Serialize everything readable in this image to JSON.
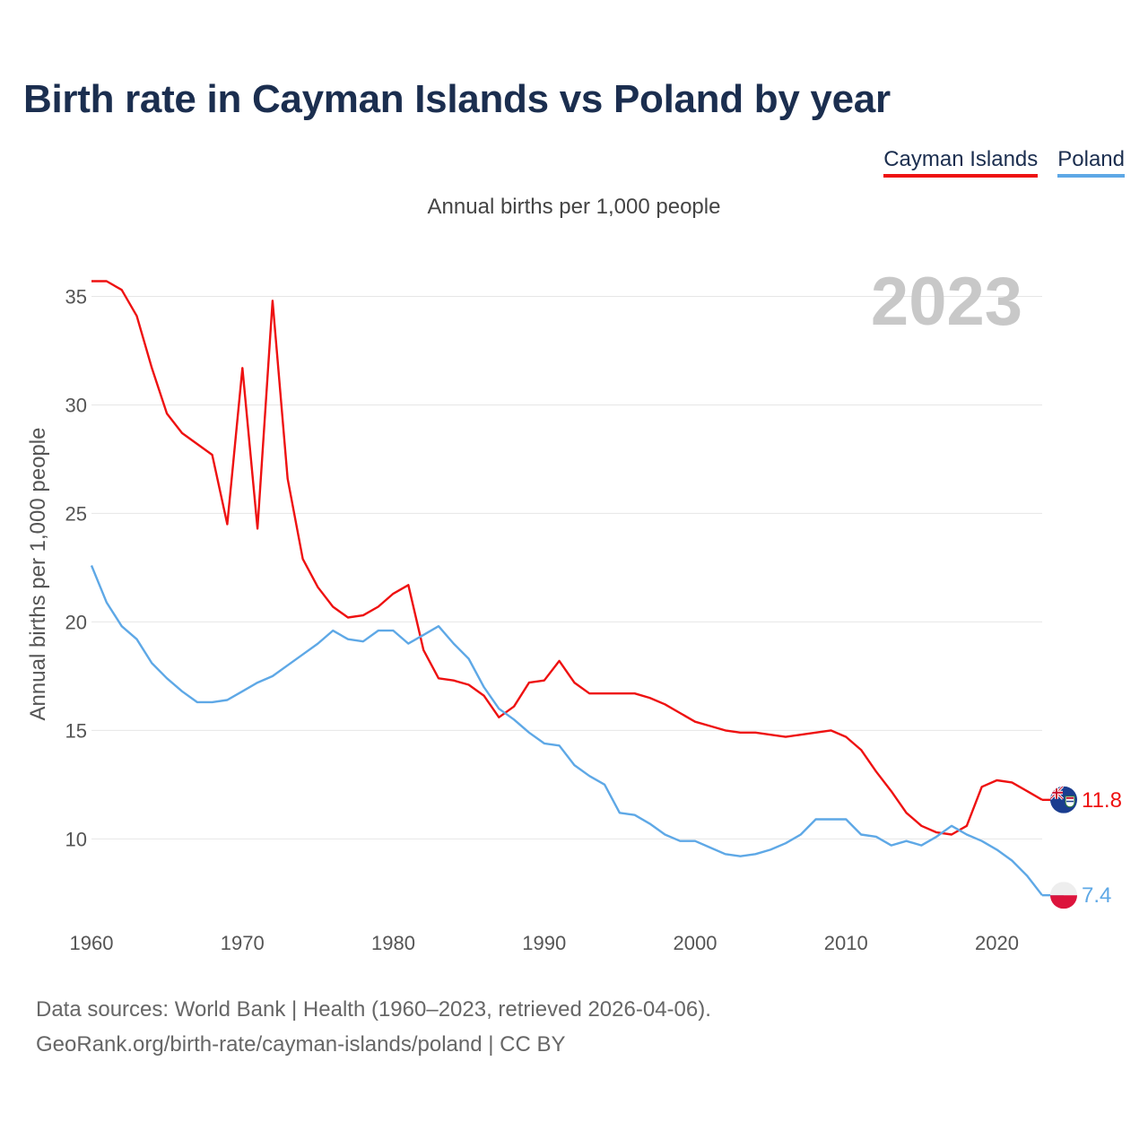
{
  "title": "Birth rate in Cayman Islands vs Poland by year",
  "subtitle": "Annual births per 1,000 people",
  "legend": [
    {
      "name": "Cayman Islands",
      "color": "#ee1111"
    },
    {
      "name": "Poland",
      "color": "#5ea8e6"
    }
  ],
  "current_year": "2023",
  "chart_data": {
    "type": "line",
    "title": "Birth rate in Cayman Islands vs Poland by year",
    "subtitle": "Annual births per 1,000 people",
    "xlabel": "",
    "ylabel": "Annual births per 1,000 people",
    "xlim": [
      1960,
      2023
    ],
    "ylim": [
      6.5,
      37.5
    ],
    "xticks": [
      1960,
      1970,
      1980,
      1990,
      2000,
      2010,
      2020
    ],
    "yticks": [
      10,
      15,
      20,
      25,
      30,
      35
    ],
    "grid": true,
    "series": [
      {
        "name": "Cayman Islands",
        "color": "#ee1111",
        "end_label": "11.8",
        "flag": "cayman-islands-flag",
        "x": [
          1960,
          1961,
          1962,
          1963,
          1964,
          1965,
          1966,
          1967,
          1968,
          1969,
          1970,
          1971,
          1972,
          1973,
          1974,
          1975,
          1976,
          1977,
          1978,
          1979,
          1980,
          1981,
          1982,
          1983,
          1984,
          1985,
          1986,
          1987,
          1988,
          1989,
          1990,
          1991,
          1992,
          1993,
          1994,
          1995,
          1996,
          1997,
          1998,
          1999,
          2000,
          2001,
          2002,
          2003,
          2004,
          2005,
          2006,
          2007,
          2008,
          2009,
          2010,
          2011,
          2012,
          2013,
          2014,
          2015,
          2016,
          2017,
          2018,
          2019,
          2020,
          2021,
          2022,
          2023
        ],
        "values": [
          35.7,
          35.7,
          35.3,
          34.1,
          31.7,
          29.6,
          28.7,
          28.2,
          27.7,
          24.5,
          31.7,
          24.3,
          34.8,
          26.6,
          22.9,
          21.6,
          20.7,
          20.2,
          20.3,
          20.7,
          21.3,
          21.7,
          18.7,
          17.4,
          17.3,
          17.1,
          16.6,
          15.6,
          16.1,
          17.2,
          17.3,
          18.2,
          17.2,
          16.7,
          16.7,
          16.7,
          16.7,
          16.5,
          16.2,
          15.8,
          15.4,
          15.2,
          15.0,
          14.9,
          14.9,
          14.8,
          14.7,
          14.8,
          14.9,
          15.0,
          14.7,
          14.1,
          13.1,
          12.2,
          11.2,
          10.6,
          10.3,
          10.2,
          10.6,
          12.4,
          12.7,
          12.6,
          12.2,
          11.8
        ]
      },
      {
        "name": "Poland",
        "color": "#5ea8e6",
        "end_label": "7.4",
        "flag": "poland-flag",
        "x": [
          1960,
          1961,
          1962,
          1963,
          1964,
          1965,
          1966,
          1967,
          1968,
          1969,
          1970,
          1971,
          1972,
          1973,
          1974,
          1975,
          1976,
          1977,
          1978,
          1979,
          1980,
          1981,
          1982,
          1983,
          1984,
          1985,
          1986,
          1987,
          1988,
          1989,
          1990,
          1991,
          1992,
          1993,
          1994,
          1995,
          1996,
          1997,
          1998,
          1999,
          2000,
          2001,
          2002,
          2003,
          2004,
          2005,
          2006,
          2007,
          2008,
          2009,
          2010,
          2011,
          2012,
          2013,
          2014,
          2015,
          2016,
          2017,
          2018,
          2019,
          2020,
          2021,
          2022,
          2023
        ],
        "values": [
          22.6,
          20.9,
          19.8,
          19.2,
          18.1,
          17.4,
          16.8,
          16.3,
          16.3,
          16.4,
          16.8,
          17.2,
          17.5,
          18.0,
          18.5,
          19.0,
          19.6,
          19.2,
          19.1,
          19.6,
          19.6,
          19.0,
          19.4,
          19.8,
          19.0,
          18.3,
          17.0,
          16.0,
          15.5,
          14.9,
          14.4,
          14.3,
          13.4,
          12.9,
          12.5,
          11.2,
          11.1,
          10.7,
          10.2,
          9.9,
          9.9,
          9.6,
          9.3,
          9.2,
          9.3,
          9.5,
          9.8,
          10.2,
          10.9,
          10.9,
          10.9,
          10.2,
          10.1,
          9.7,
          9.9,
          9.7,
          10.1,
          10.6,
          10.2,
          9.9,
          9.5,
          9.0,
          8.3,
          7.4
        ]
      }
    ]
  },
  "source": {
    "line1": "Data sources: World Bank | Health (1960–2023, retrieved 2026-04-06).",
    "line2": "GeoRank.org/birth-rate/cayman-islands/poland | CC BY"
  }
}
